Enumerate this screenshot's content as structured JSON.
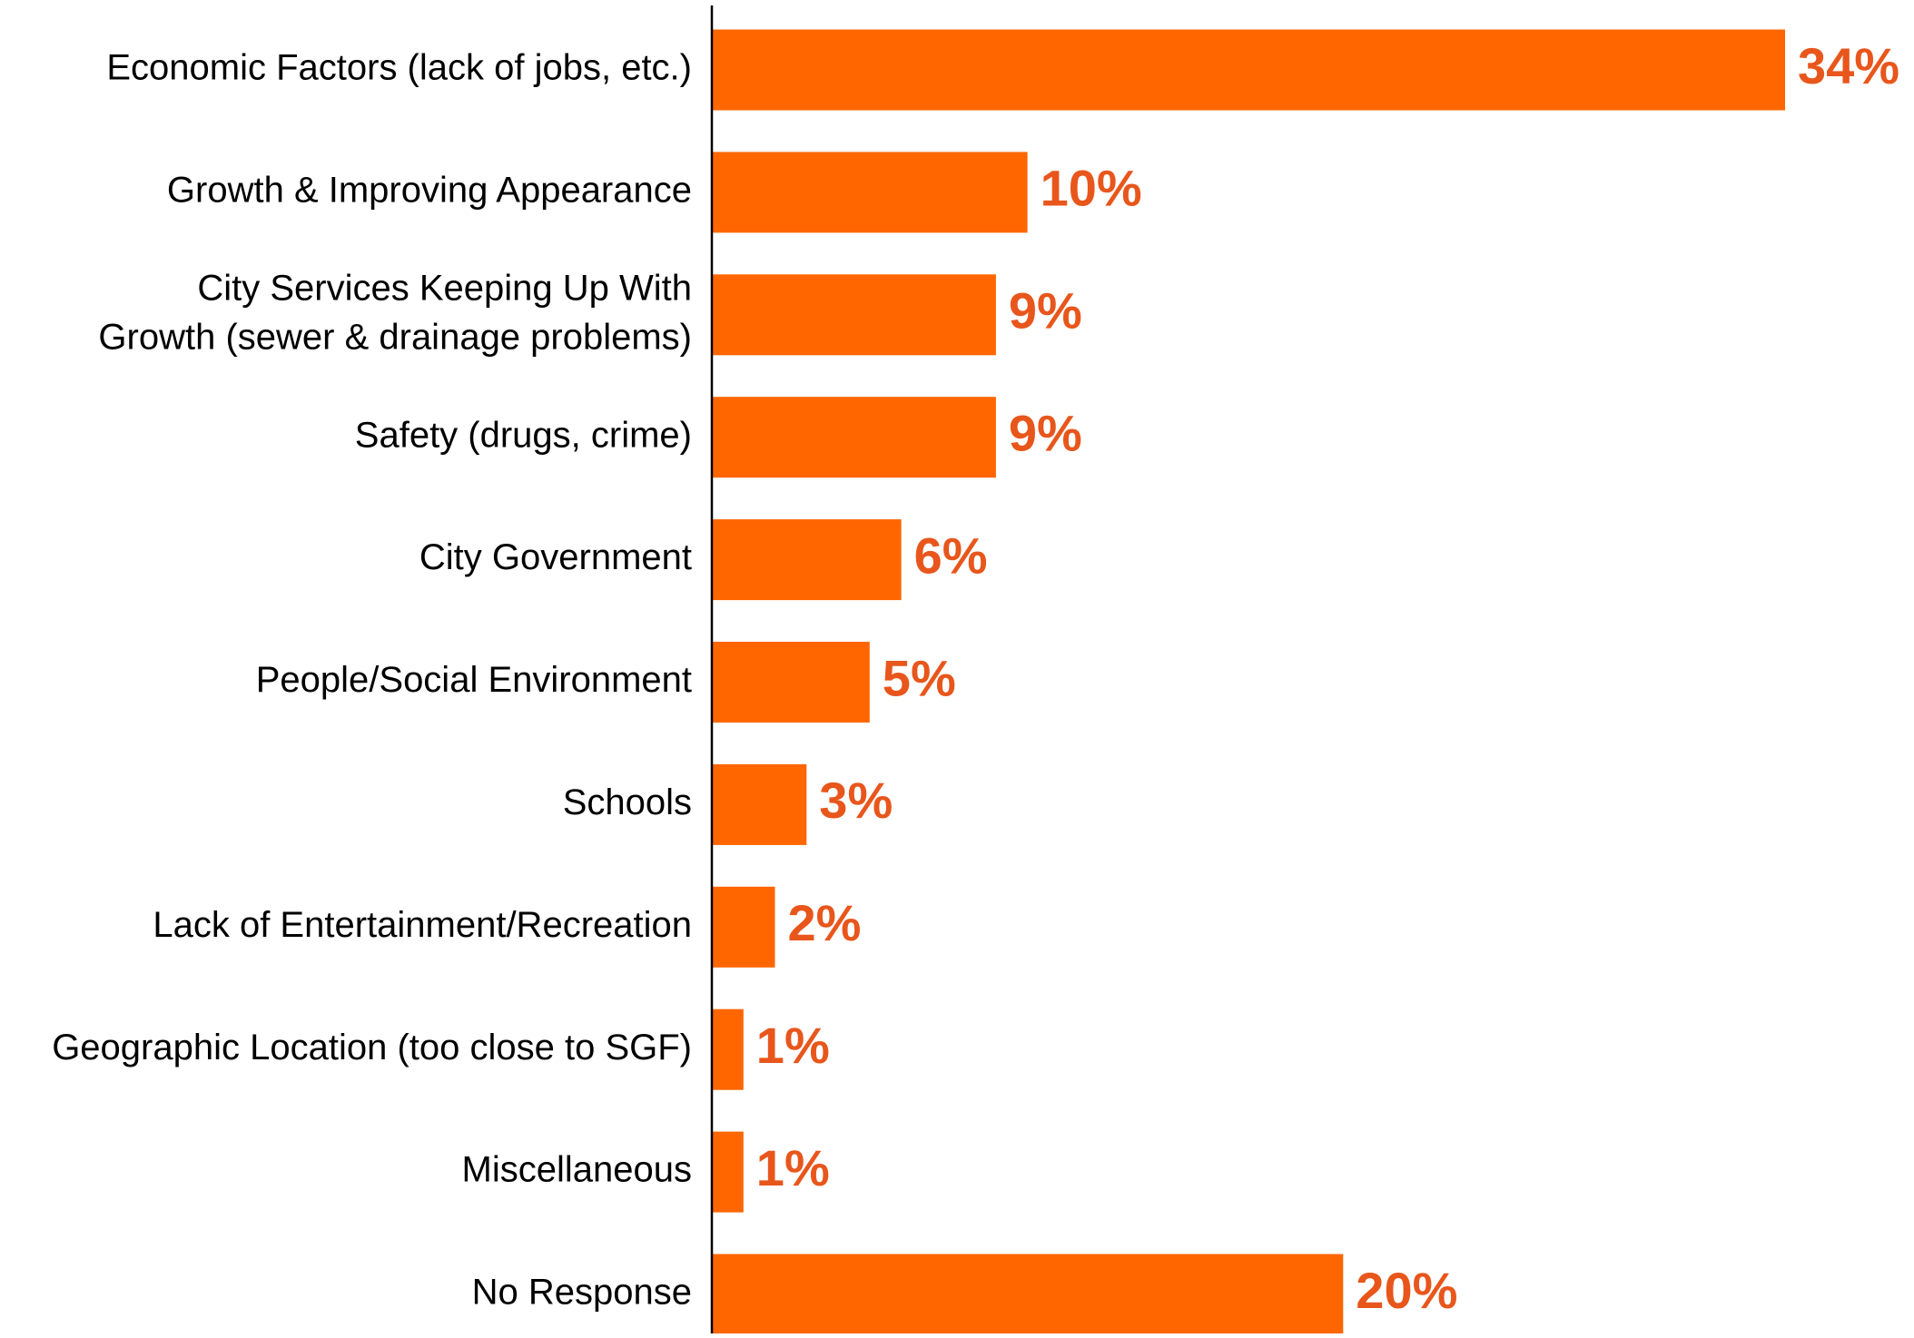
{
  "chart_data": {
    "type": "bar",
    "orientation": "horizontal",
    "categories": [
      [
        "Economic Factors (lack of jobs, etc.)"
      ],
      [
        "Growth & Improving Appearance"
      ],
      [
        "City Services Keeping Up With",
        "Growth (sewer & drainage problems)"
      ],
      [
        "Safety (drugs, crime)"
      ],
      [
        "City Government"
      ],
      [
        "People/Social Environment"
      ],
      [
        "Schools"
      ],
      [
        "Lack of Entertainment/Recreation"
      ],
      [
        "Geographic Location (too close to SGF)"
      ],
      [
        "Miscellaneous"
      ],
      [
        "No Response"
      ]
    ],
    "values": [
      34,
      10,
      9,
      9,
      6,
      5,
      3,
      2,
      1,
      1,
      20
    ],
    "value_labels": [
      "34%",
      "10%",
      "9%",
      "9%",
      "6%",
      "5%",
      "3%",
      "2%",
      "1%",
      "1%",
      "20%"
    ],
    "unit": "%",
    "xlim": [
      0,
      34
    ],
    "grid": false,
    "legend": "none",
    "colors": {
      "bar": "#FF6600",
      "value_label": "#E8561C",
      "axis": "#000000"
    }
  }
}
